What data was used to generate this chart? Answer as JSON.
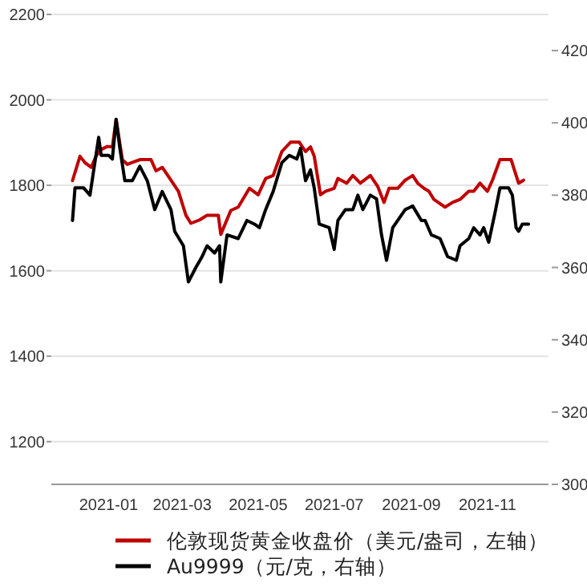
{
  "chart_data": {
    "type": "line",
    "xlim": [
      "2020-11-16",
      "2021-12-20"
    ],
    "xticks": [
      "2021-01",
      "2021-03",
      "2021-05",
      "2021-07",
      "2021-09",
      "2021-11"
    ],
    "ylim": [
      1100,
      2200
    ],
    "yticks": [
      1200,
      1400,
      1600,
      1800,
      2000,
      2200
    ],
    "y2lim": [
      300,
      430
    ],
    "y2ticks": [
      300,
      320,
      340,
      360,
      380,
      400,
      420
    ],
    "grid": "y",
    "legend": "bottom",
    "series": [
      {
        "name": "伦敦现货黄金收盘价（美元/盎司，左轴）",
        "color": "#c00000",
        "x": [
          "2020-12-03",
          "2020-12-09",
          "2020-12-13",
          "2020-12-18",
          "2020-12-22",
          "2020-12-26",
          "2020-12-31",
          "2021-01-04",
          "2021-01-07",
          "2021-01-12",
          "2021-01-16",
          "2021-01-26",
          "2021-02-04",
          "2021-02-08",
          "2021-02-13",
          "2021-02-20",
          "2021-02-26",
          "2021-03-04",
          "2021-03-08",
          "2021-03-15",
          "2021-03-21",
          "2021-03-30",
          "2021-04-01",
          "2021-04-09",
          "2021-04-15",
          "2021-04-24",
          "2021-05-01",
          "2021-05-07",
          "2021-05-13",
          "2021-05-20",
          "2021-05-27",
          "2021-06-03",
          "2021-06-08",
          "2021-06-12",
          "2021-06-15",
          "2021-06-20",
          "2021-06-24",
          "2021-07-01",
          "2021-07-04",
          "2021-07-11",
          "2021-07-16",
          "2021-07-22",
          "2021-07-30",
          "2021-08-05",
          "2021-08-10",
          "2021-08-14",
          "2021-08-21",
          "2021-08-27",
          "2021-09-02",
          "2021-09-06",
          "2021-09-11",
          "2021-09-15",
          "2021-09-19",
          "2021-09-28",
          "2021-10-04",
          "2021-10-10",
          "2021-10-17",
          "2021-10-21",
          "2021-10-26",
          "2021-11-01",
          "2021-11-05",
          "2021-11-11",
          "2021-11-20",
          "2021-11-26",
          "2021-11-30"
        ],
        "values": [
          1811,
          1868,
          1853,
          1842,
          1869,
          1884,
          1891,
          1890,
          1954,
          1860,
          1849,
          1860,
          1860,
          1834,
          1842,
          1812,
          1786,
          1730,
          1711,
          1719,
          1730,
          1730,
          1685,
          1741,
          1749,
          1793,
          1778,
          1816,
          1823,
          1879,
          1901,
          1901,
          1879,
          1890,
          1868,
          1778,
          1786,
          1793,
          1816,
          1805,
          1823,
          1805,
          1823,
          1797,
          1760,
          1793,
          1793,
          1812,
          1823,
          1805,
          1793,
          1786,
          1767,
          1749,
          1760,
          1767,
          1786,
          1786,
          1805,
          1786,
          1812,
          1860,
          1860,
          1805,
          1812
        ]
      },
      {
        "name": "Au9999（元/克，右轴）",
        "color": "#000000",
        "axis": "y2",
        "x": [
          "2020-12-03",
          "2020-12-05",
          "2020-12-12",
          "2020-12-17",
          "2020-12-24",
          "2020-12-26",
          "2021-01-01",
          "2021-01-04",
          "2021-01-07",
          "2021-01-10",
          "2021-01-14",
          "2021-01-20",
          "2021-01-26",
          "2021-02-01",
          "2021-02-07",
          "2021-02-13",
          "2021-02-20",
          "2021-02-23",
          "2021-03-02",
          "2021-03-06",
          "2021-03-12",
          "2021-03-17",
          "2021-03-21",
          "2021-03-27",
          "2021-03-31",
          "2021-04-01",
          "2021-04-06",
          "2021-04-15",
          "2021-04-22",
          "2021-04-28",
          "2021-05-02",
          "2021-05-07",
          "2021-05-13",
          "2021-05-20",
          "2021-05-26",
          "2021-06-01",
          "2021-06-04",
          "2021-06-08",
          "2021-06-12",
          "2021-06-15",
          "2021-06-19",
          "2021-06-27",
          "2021-07-01",
          "2021-07-04",
          "2021-07-10",
          "2021-07-16",
          "2021-07-20",
          "2021-07-24",
          "2021-07-30",
          "2021-08-04",
          "2021-08-08",
          "2021-08-12",
          "2021-08-17",
          "2021-08-21",
          "2021-08-27",
          "2021-09-02",
          "2021-09-09",
          "2021-09-12",
          "2021-09-17",
          "2021-09-24",
          "2021-09-30",
          "2021-10-07",
          "2021-10-10",
          "2021-10-17",
          "2021-10-21",
          "2021-10-26",
          "2021-10-29",
          "2021-11-02",
          "2021-11-07",
          "2021-11-11",
          "2021-11-18",
          "2021-11-21",
          "2021-11-24",
          "2021-11-26",
          "2021-11-29",
          "2021-12-04"
        ],
        "values": [
          373,
          382,
          382,
          380,
          396,
          391,
          391,
          390,
          401,
          393,
          384,
          384,
          388,
          384,
          376,
          381,
          376,
          370,
          366,
          356,
          360,
          363,
          366,
          364,
          366,
          356,
          369,
          368,
          373,
          372,
          371,
          376,
          381,
          389,
          391,
          390,
          393,
          384,
          387,
          382,
          372,
          371,
          365,
          373,
          376,
          376,
          380,
          376,
          380,
          379,
          369,
          362,
          371,
          373,
          376,
          377,
          373,
          373,
          369,
          368,
          363,
          362,
          366,
          368,
          371,
          369,
          371,
          367,
          375,
          382,
          382,
          380,
          371,
          370,
          372,
          372
        ]
      }
    ]
  }
}
